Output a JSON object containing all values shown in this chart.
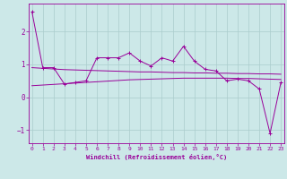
{
  "x": [
    0,
    1,
    2,
    3,
    4,
    5,
    6,
    7,
    8,
    9,
    10,
    11,
    12,
    13,
    14,
    15,
    16,
    17,
    18,
    19,
    20,
    21,
    22,
    23
  ],
  "line1": [
    2.6,
    0.9,
    0.9,
    0.4,
    0.45,
    0.5,
    1.2,
    1.2,
    1.2,
    1.35,
    1.1,
    0.95,
    1.2,
    1.1,
    1.55,
    1.1,
    0.85,
    0.8,
    0.5,
    0.55,
    0.5,
    0.25,
    -1.1,
    0.45
  ],
  "trend_upper": [
    0.9,
    0.88,
    0.86,
    0.84,
    0.83,
    0.82,
    0.81,
    0.8,
    0.79,
    0.78,
    0.77,
    0.77,
    0.76,
    0.75,
    0.75,
    0.74,
    0.74,
    0.73,
    0.73,
    0.72,
    0.72,
    0.71,
    0.71,
    0.7
  ],
  "trend_lower": [
    0.35,
    0.37,
    0.39,
    0.41,
    0.43,
    0.45,
    0.47,
    0.49,
    0.51,
    0.53,
    0.54,
    0.55,
    0.56,
    0.57,
    0.58,
    0.58,
    0.58,
    0.58,
    0.58,
    0.57,
    0.57,
    0.56,
    0.55,
    0.54
  ],
  "bgcolor": "#cce8e8",
  "grid_color": "#aacccc",
  "line_color": "#990099",
  "xlabel": "Windchill (Refroidissement éolien,°C)",
  "yticks": [
    -1,
    0,
    1,
    2
  ],
  "xticks": [
    0,
    1,
    2,
    3,
    4,
    5,
    6,
    7,
    8,
    9,
    10,
    11,
    12,
    13,
    14,
    15,
    16,
    17,
    18,
    19,
    20,
    21,
    22,
    23
  ],
  "xlim": [
    -0.3,
    23.3
  ],
  "ylim": [
    -1.4,
    2.85
  ],
  "figsize": [
    3.2,
    2.0
  ],
  "dpi": 100
}
